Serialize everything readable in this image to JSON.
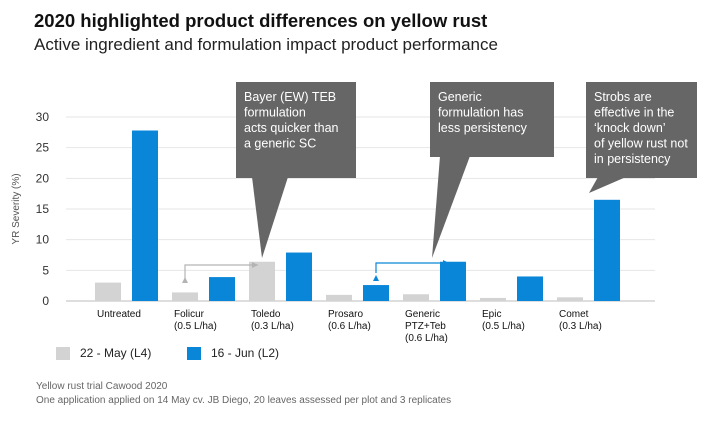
{
  "title": "2020 highlighted product differences on yellow rust",
  "subtitle": "Active ingredient and formulation impact product performance",
  "colors": {
    "series1": "#d3d3d3",
    "series2": "#0a86d8",
    "callout": "#666666",
    "arrow_grey": "#b3b3b3",
    "arrow_blue": "#0a86d8"
  },
  "chart_data": {
    "type": "bar",
    "ylabel": "YR Severity (%)",
    "ylim": [
      0,
      30
    ],
    "yticks": [
      0,
      5,
      10,
      15,
      20,
      25,
      30
    ],
    "grid": true,
    "categories": [
      [
        "Untreated"
      ],
      [
        "Folicur",
        "(0.5 L/ha)"
      ],
      [
        "Toledo",
        "(0.3 L/ha)"
      ],
      [
        "Prosaro",
        "(0.6 L/ha)"
      ],
      [
        "Generic",
        "PTZ+Teb",
        "(0.6 L/ha)"
      ],
      [
        "Epic",
        "(0.5 L/ha)"
      ],
      [
        "Comet",
        "(0.3 L/ha)"
      ]
    ],
    "series": [
      {
        "name": "22 - May (L4)",
        "values": [
          3.0,
          1.4,
          6.4,
          1.0,
          1.1,
          0.5,
          0.6
        ]
      },
      {
        "name": "16 - Jun (L2)",
        "values": [
          27.8,
          3.9,
          7.9,
          2.6,
          6.4,
          4.0,
          16.5
        ]
      }
    ],
    "legend_position": "bottom-left",
    "annotations": [
      {
        "lines": [
          "Bayer (EW) TEB",
          "formulation",
          "acts quicker than",
          "a generic SC"
        ]
      },
      {
        "lines": [
          "Generic",
          "formulation has",
          "less persistency"
        ]
      },
      {
        "lines": [
          "Strobs are",
          "effective in the",
          "‘knock down’",
          "of yellow rust not",
          "in persistency"
        ]
      }
    ]
  },
  "footnotes": [
    "Yellow rust trial Cawood 2020",
    "One application applied on 14 May cv. JB Diego, 20 leaves assessed per plot and 3 replicates"
  ]
}
